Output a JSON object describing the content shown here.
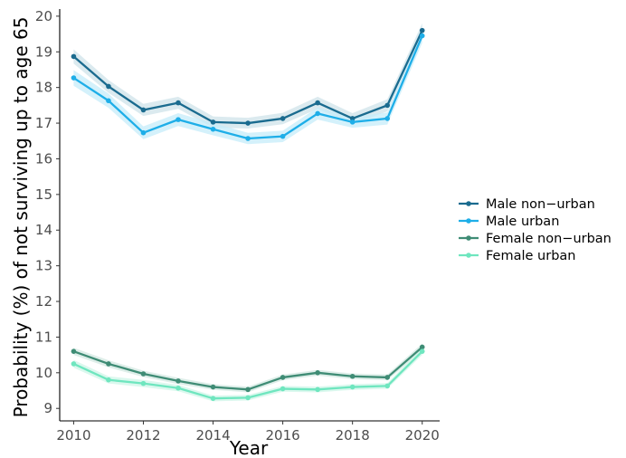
{
  "chart_data": {
    "type": "line",
    "xlabel": "Year",
    "ylabel": "Probability (%) of not surviving up to age 65",
    "xlim": [
      2009.6,
      2020.5
    ],
    "ylim": [
      8.65,
      20.2
    ],
    "x": [
      2010,
      2011,
      2012,
      2013,
      2014,
      2015,
      2016,
      2017,
      2018,
      2019,
      2020
    ],
    "x_ticks": [
      "2010",
      "2012",
      "2014",
      "2016",
      "2018",
      "2020"
    ],
    "y_ticks": [
      "9",
      "10",
      "11",
      "12",
      "13",
      "14",
      "15",
      "16",
      "17",
      "18",
      "19",
      "20"
    ],
    "grid": false,
    "legend_position": "right",
    "series": [
      {
        "name": "Male non−urban",
        "color": "#1a6b8f",
        "band_color": "#cfe3ea",
        "values": [
          18.87,
          18.03,
          17.37,
          17.57,
          17.03,
          17.0,
          17.13,
          17.57,
          17.13,
          17.5,
          19.6
        ],
        "lower": [
          18.67,
          17.85,
          17.2,
          17.4,
          16.87,
          16.85,
          16.97,
          17.4,
          16.98,
          17.33,
          19.4
        ],
        "upper": [
          19.07,
          18.21,
          17.54,
          17.74,
          17.19,
          17.15,
          17.29,
          17.74,
          17.28,
          17.67,
          19.8
        ]
      },
      {
        "name": "Male urban",
        "color": "#1eaee8",
        "band_color": "#c6ecfa",
        "values": [
          18.27,
          17.63,
          16.73,
          17.1,
          16.83,
          16.57,
          16.63,
          17.27,
          17.03,
          17.13,
          19.45
        ],
        "lower": [
          18.05,
          17.43,
          16.55,
          16.92,
          16.66,
          16.41,
          16.47,
          17.1,
          16.87,
          16.96,
          19.25
        ],
        "upper": [
          18.49,
          17.83,
          16.91,
          17.28,
          17.0,
          16.73,
          16.79,
          17.44,
          17.19,
          17.3,
          19.65
        ]
      },
      {
        "name": "Female non−urban",
        "color": "#3f8c75",
        "band_color": "#d3e8e1",
        "values": [
          10.6,
          10.25,
          9.97,
          9.77,
          9.6,
          9.53,
          9.87,
          10.0,
          9.9,
          9.87,
          10.72
        ],
        "lower": [
          10.5,
          10.15,
          9.88,
          9.68,
          9.52,
          9.45,
          9.79,
          9.92,
          9.82,
          9.79,
          10.62
        ],
        "upper": [
          10.7,
          10.35,
          10.06,
          9.86,
          9.68,
          9.61,
          9.95,
          10.08,
          9.98,
          9.95,
          10.82
        ]
      },
      {
        "name": "Female urban",
        "color": "#6fe6bf",
        "band_color": "#cff6e8",
        "values": [
          10.25,
          9.8,
          9.7,
          9.57,
          9.28,
          9.3,
          9.55,
          9.53,
          9.6,
          9.63,
          10.6
        ],
        "lower": [
          10.14,
          9.7,
          9.6,
          9.48,
          9.2,
          9.22,
          9.47,
          9.45,
          9.52,
          9.55,
          10.5
        ],
        "upper": [
          10.36,
          9.9,
          9.8,
          9.66,
          9.36,
          9.38,
          9.63,
          9.61,
          9.68,
          9.71,
          10.7
        ]
      }
    ]
  }
}
